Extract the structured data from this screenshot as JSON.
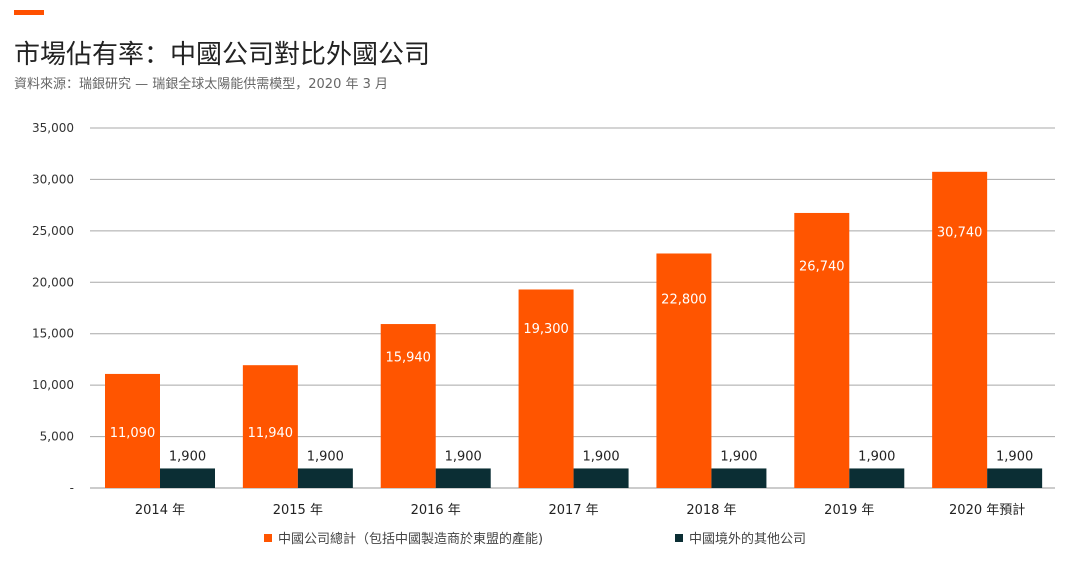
{
  "header": {
    "title": "市場佔有率：中國公司對比外國公司",
    "subtitle": "資料來源：瑞銀研究 — 瑞銀全球太陽能供需模型，2020 年 3 月",
    "accent_color": "#ff5000"
  },
  "chart_data": {
    "type": "bar",
    "categories": [
      "2014 年",
      "2015 年",
      "2016 年",
      "2017 年",
      "2018 年",
      "2019 年",
      "2020 年預計"
    ],
    "series": [
      {
        "name": "中國公司總計（包括中國製造商於東盟的產能)",
        "color": "#ff5500",
        "values": [
          11090,
          11940,
          15940,
          19300,
          22800,
          26740,
          30740
        ],
        "labels": [
          "11,090",
          "11,940",
          "15,940",
          "19,300",
          "22,800",
          "26,740",
          "30,740"
        ]
      },
      {
        "name": "中國境外的其他公司",
        "color": "#0b2e34",
        "values": [
          1900,
          1900,
          1900,
          1900,
          1900,
          1900,
          1900
        ],
        "labels": [
          "1,900",
          "1,900",
          "1,900",
          "1,900",
          "1,900",
          "1,900",
          "1,900"
        ]
      }
    ],
    "yticks": [
      "-",
      "5,000",
      "10,000",
      "15,000",
      "20,000",
      "25,000",
      "30,000",
      "35,000"
    ],
    "ylim": [
      0,
      35000
    ],
    "grid": true,
    "legend_position": "bottom"
  }
}
